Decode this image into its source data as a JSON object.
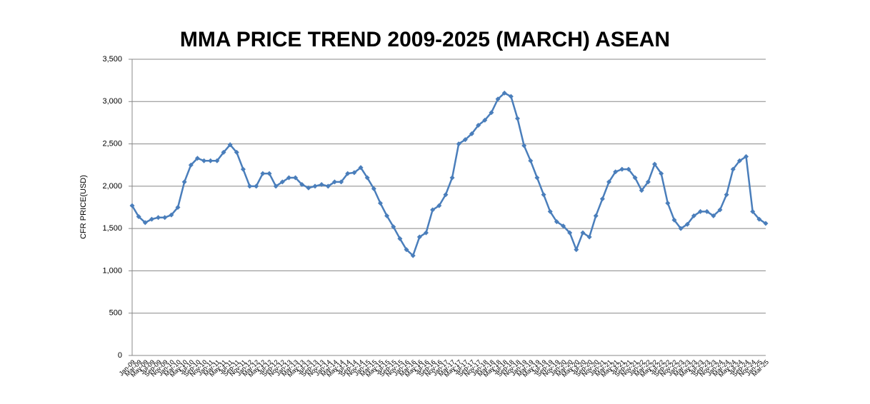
{
  "chart_data": {
    "type": "line",
    "title": "MMA PRICE  TREND 2009-2025 (MARCH)  ASEAN",
    "y_label": "CFR PRICE(USD)",
    "categories": [
      "Jan-09",
      "Mar-09",
      "May-09",
      "Jul-09",
      "Sep-09",
      "Nov-09",
      "Jan-10",
      "Mar-10",
      "May-10",
      "Jul-10",
      "Sep-10",
      "Nov-10",
      "Jan-11",
      "Mar-11",
      "May-11",
      "Jul-11",
      "Sep-11",
      "Nov-11",
      "Jan-12",
      "Mar-12",
      "May-12",
      "Jul-12",
      "Sep-12",
      "Nov-12",
      "Jan-13",
      "Mar-13",
      "May-13",
      "Jul-13",
      "Sep-13",
      "Nov-13",
      "Jan-14",
      "Mar-14",
      "May-14",
      "Jul-14",
      "Sep-14",
      "Nov-14",
      "Jan-15",
      "Mar-15",
      "May-15",
      "Jul-15",
      "Sep-15",
      "Nov-15",
      "Jan-16",
      "Mar-16",
      "May-16",
      "Jul-16",
      "Sep-16",
      "Nov-16",
      "Jan-17",
      "Mar-17",
      "May-17",
      "Jul-17",
      "Sep-17",
      "Nov-17",
      "Jan-18",
      "Mar-18",
      "May-18",
      "Jul-18",
      "Sep-18",
      "Nov-18",
      "Jan-19",
      "Mar-19",
      "May-19",
      "Jul-19",
      "Sep-19",
      "Nov-19",
      "Jan-20",
      "Mar-20",
      "May-20",
      "Jul-20",
      "Sep-20",
      "Nov-20",
      "Jan-21",
      "Mar-21",
      "May-21",
      "Jul-21",
      "Sep-21",
      "Nov-21",
      "Jan-22",
      "Mar-22",
      "May-22",
      "Jul-22",
      "Sep-22",
      "Nov-22",
      "Jan-23",
      "Mar-23",
      "May-23",
      "Jul-23",
      "Sep-23",
      "Nov-23",
      "Jan-24",
      "Mar-24",
      "May-24",
      "Jul-24",
      "Sep-24",
      "Nov-24",
      "Jan-25",
      "Mar-25"
    ],
    "series": [
      {
        "name": "MMA",
        "color": "#4a7ebb",
        "values": [
          1770,
          1640,
          1570,
          1610,
          1630,
          1630,
          1660,
          1750,
          2050,
          2250,
          2330,
          2300,
          2300,
          2300,
          2400,
          2490,
          2400,
          2200,
          2000,
          2000,
          2150,
          2150,
          2000,
          2050,
          2100,
          2100,
          2020,
          1980,
          2000,
          2020,
          2000,
          2050,
          2050,
          2150,
          2160,
          2220,
          2100,
          1970,
          1800,
          1650,
          1520,
          1380,
          1250,
          1180,
          1400,
          1450,
          1720,
          1770,
          1900,
          2100,
          2500,
          2550,
          2620,
          2720,
          2780,
          2870,
          3030,
          3100,
          3060,
          2800,
          2480,
          2300,
          2100,
          1900,
          1700,
          1580,
          1530,
          1450,
          1250,
          1450,
          1400,
          1650,
          1850,
          2050,
          2170,
          2200,
          2200,
          2100,
          1950,
          2050,
          2260,
          2150,
          1800,
          1600,
          1500,
          1550,
          1650,
          1700,
          1700,
          1650,
          1720,
          1900,
          2200,
          2300,
          2350,
          1700,
          1610,
          1560
        ]
      }
    ],
    "ylim": [
      0,
      3500
    ],
    "yticks": [
      0,
      500,
      {
        "value": 1000,
        "label": "1,000"
      },
      {
        "value": 1500,
        "label": "1,500"
      },
      {
        "value": 2000,
        "label": "2,000"
      },
      {
        "value": 2500,
        "label": "2,500"
      },
      {
        "value": 3000,
        "label": "3,000"
      },
      {
        "value": 3500,
        "label": "3,500"
      }
    ],
    "grid": true
  }
}
